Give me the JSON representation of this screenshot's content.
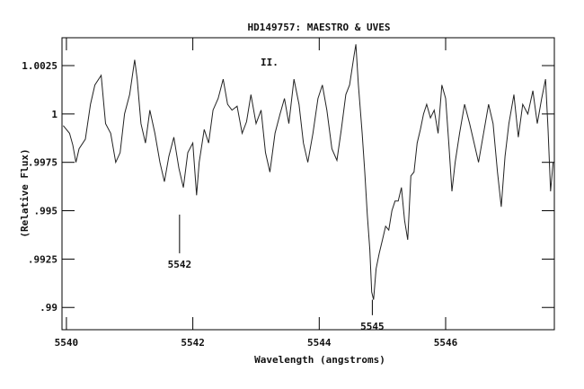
{
  "chart_data": {
    "type": "line",
    "title": "HD149757: MAESTRO & UVES",
    "xlabel": "Wavelength (angstroms)",
    "ylabel": "(Relative Flux)",
    "xlim": [
      5539.93,
      5547.72
    ],
    "ylim": [
      0.98885,
      1.00394
    ],
    "x_ticks": [
      {
        "value": 5540,
        "label": "5540"
      },
      {
        "value": 5542,
        "label": "5542"
      },
      {
        "value": 5544,
        "label": "5544"
      },
      {
        "value": 5546,
        "label": "5546"
      }
    ],
    "y_ticks": [
      {
        "value": 1.0025,
        "label": "1.0025"
      },
      {
        "value": 1.0,
        "label": "1"
      },
      {
        "value": 0.9975,
        "label": ".9975"
      },
      {
        "value": 0.995,
        "label": ".995"
      },
      {
        "value": 0.9925,
        "label": ".9925"
      },
      {
        "value": 0.99,
        "label": ".99"
      }
    ],
    "panel_label": "II.",
    "annotations": [
      {
        "label": "5542",
        "x": 5541.79,
        "y_top": 0.9948,
        "y_bottom": 0.9928
      },
      {
        "label": "5545",
        "x": 5544.84,
        "y_top": 0.9904,
        "y_bottom": 0.9896
      }
    ],
    "series": [
      {
        "color": "#222222",
        "points": [
          [
            5539.95,
            0.9994
          ],
          [
            5540.05,
            0.999
          ],
          [
            5540.1,
            0.9984
          ],
          [
            5540.15,
            0.9975
          ],
          [
            5540.2,
            0.9982
          ],
          [
            5540.3,
            0.9987
          ],
          [
            5540.38,
            1.0005
          ],
          [
            5540.45,
            1.0015
          ],
          [
            5540.55,
            1.002
          ],
          [
            5540.62,
            0.9995
          ],
          [
            5540.7,
            0.999
          ],
          [
            5540.78,
            0.9975
          ],
          [
            5540.85,
            0.998
          ],
          [
            5540.92,
            1.0
          ],
          [
            5541.0,
            1.001
          ],
          [
            5541.08,
            1.0028
          ],
          [
            5541.12,
            1.0018
          ],
          [
            5541.18,
            0.9995
          ],
          [
            5541.25,
            0.9985
          ],
          [
            5541.32,
            1.0002
          ],
          [
            5541.4,
            0.999
          ],
          [
            5541.48,
            0.9975
          ],
          [
            5541.55,
            0.9965
          ],
          [
            5541.62,
            0.9978
          ],
          [
            5541.7,
            0.9988
          ],
          [
            5541.78,
            0.9972
          ],
          [
            5541.85,
            0.9962
          ],
          [
            5541.92,
            0.998
          ],
          [
            5542.0,
            0.9985
          ],
          [
            5542.06,
            0.9958
          ],
          [
            5542.1,
            0.9975
          ],
          [
            5542.18,
            0.9992
          ],
          [
            5542.25,
            0.9985
          ],
          [
            5542.32,
            1.0002
          ],
          [
            5542.4,
            1.0008
          ],
          [
            5542.48,
            1.0018
          ],
          [
            5542.55,
            1.0005
          ],
          [
            5542.62,
            1.0002
          ],
          [
            5542.7,
            1.0004
          ],
          [
            5542.78,
            0.999
          ],
          [
            5542.85,
            0.9996
          ],
          [
            5542.92,
            1.001
          ],
          [
            5543.0,
            0.9995
          ],
          [
            5543.08,
            1.0002
          ],
          [
            5543.15,
            0.998
          ],
          [
            5543.22,
            0.997
          ],
          [
            5543.3,
            0.999
          ],
          [
            5543.38,
            1.0
          ],
          [
            5543.45,
            1.0008
          ],
          [
            5543.52,
            0.9995
          ],
          [
            5543.6,
            1.0018
          ],
          [
            5543.68,
            1.0005
          ],
          [
            5543.75,
            0.9985
          ],
          [
            5543.82,
            0.9975
          ],
          [
            5543.9,
            0.999
          ],
          [
            5543.98,
            1.0008
          ],
          [
            5544.05,
            1.0015
          ],
          [
            5544.12,
            1.0002
          ],
          [
            5544.2,
            0.9982
          ],
          [
            5544.28,
            0.9976
          ],
          [
            5544.35,
            0.9992
          ],
          [
            5544.42,
            1.001
          ],
          [
            5544.48,
            1.0015
          ],
          [
            5544.55,
            1.003
          ],
          [
            5544.58,
            1.0036
          ],
          [
            5544.62,
            1.0015
          ],
          [
            5544.68,
            0.999
          ],
          [
            5544.72,
            0.997
          ],
          [
            5544.76,
            0.9948
          ],
          [
            5544.8,
            0.993
          ],
          [
            5544.83,
            0.9908
          ],
          [
            5544.86,
            0.9904
          ],
          [
            5544.9,
            0.992
          ],
          [
            5544.95,
            0.9928
          ],
          [
            5545.0,
            0.9935
          ],
          [
            5545.05,
            0.9942
          ],
          [
            5545.1,
            0.994
          ],
          [
            5545.15,
            0.995
          ],
          [
            5545.2,
            0.9955
          ],
          [
            5545.25,
            0.9955
          ],
          [
            5545.3,
            0.9962
          ],
          [
            5545.35,
            0.9945
          ],
          [
            5545.4,
            0.9935
          ],
          [
            5545.45,
            0.9968
          ],
          [
            5545.5,
            0.997
          ],
          [
            5545.55,
            0.9985
          ],
          [
            5545.6,
            0.9992
          ],
          [
            5545.65,
            1.0
          ],
          [
            5545.7,
            1.0005
          ],
          [
            5545.76,
            0.9998
          ],
          [
            5545.82,
            1.0002
          ],
          [
            5545.88,
            0.999
          ],
          [
            5545.94,
            1.0015
          ],
          [
            5546.0,
            1.0008
          ],
          [
            5546.05,
            0.9985
          ],
          [
            5546.1,
            0.996
          ],
          [
            5546.15,
            0.9975
          ],
          [
            5546.22,
            0.999
          ],
          [
            5546.3,
            1.0005
          ],
          [
            5546.38,
            0.9995
          ],
          [
            5546.45,
            0.9985
          ],
          [
            5546.52,
            0.9975
          ],
          [
            5546.6,
            0.999
          ],
          [
            5546.68,
            1.0005
          ],
          [
            5546.75,
            0.9995
          ],
          [
            5546.82,
            0.997
          ],
          [
            5546.88,
            0.9952
          ],
          [
            5546.94,
            0.9978
          ],
          [
            5547.0,
            0.9995
          ],
          [
            5547.08,
            1.001
          ],
          [
            5547.15,
            0.9988
          ],
          [
            5547.22,
            1.0005
          ],
          [
            5547.3,
            1.0
          ],
          [
            5547.38,
            1.0012
          ],
          [
            5547.45,
            0.9995
          ],
          [
            5547.52,
            1.0008
          ],
          [
            5547.58,
            1.0018
          ],
          [
            5547.62,
            0.9992
          ],
          [
            5547.66,
            0.996
          ],
          [
            5547.7,
            0.9975
          ]
        ]
      }
    ]
  }
}
